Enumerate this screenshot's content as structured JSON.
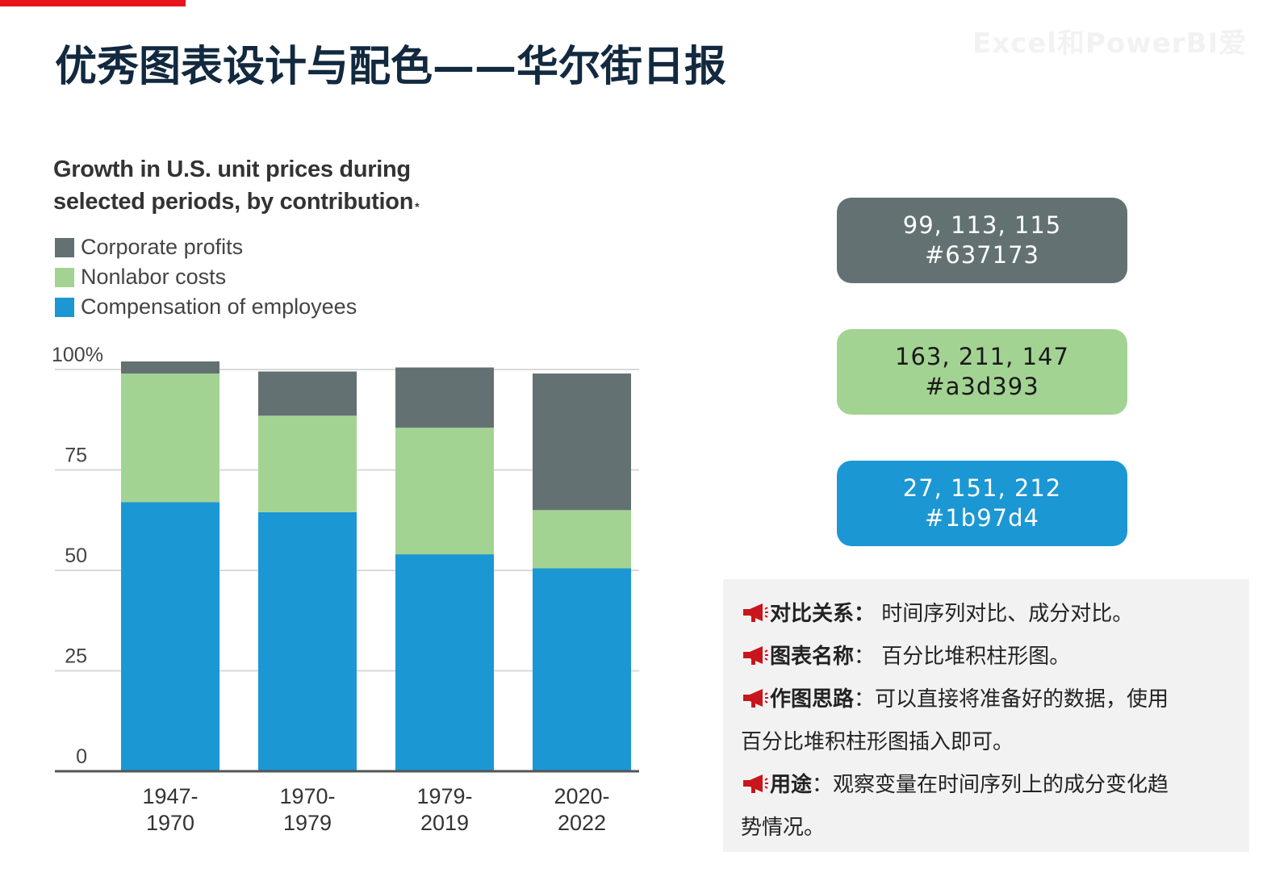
{
  "header": {
    "title": "优秀图表设计与配色——华尔街日报",
    "watermark": "Excel和PowerBI爱"
  },
  "chart_data": {
    "type": "bar",
    "stacked": true,
    "title": "Growth in U.S. unit prices during selected periods, by contribution",
    "title_mark": "*",
    "categories": [
      "1947-1970",
      "1970-1979",
      "1979-2019",
      "2020-2022"
    ],
    "category_lines": [
      [
        "1947-",
        "1970"
      ],
      [
        "1970-",
        "1979"
      ],
      [
        "1979-",
        "2019"
      ],
      [
        "2020-",
        "2022"
      ]
    ],
    "series": [
      {
        "name": "Compensation of employees",
        "values": [
          67,
          64.5,
          54,
          50.5
        ],
        "color": "#1b97d4"
      },
      {
        "name": "Nonlabor costs",
        "values": [
          32,
          24,
          31.5,
          14.5
        ],
        "color": "#a3d393"
      },
      {
        "name": "Corporate profits",
        "values": [
          3,
          11,
          15,
          34
        ],
        "color": "#637173"
      }
    ],
    "legend_order": [
      2,
      1,
      0
    ],
    "yticks": [
      0,
      25,
      50,
      75,
      100
    ],
    "ytick_labels": [
      "0",
      "25",
      "50",
      "75",
      "100%"
    ],
    "ylim": [
      0,
      100
    ],
    "xlabel": "",
    "ylabel": "",
    "grid": true,
    "legend_position": "top-left"
  },
  "color_cards": [
    {
      "rgb": "99, 113, 115",
      "hex": "#637173",
      "background": "#637173",
      "text_color": "#ffffff"
    },
    {
      "rgb": "163, 211, 147",
      "hex": "#a3d393",
      "background": "#a3d393",
      "text_color": "#1a1a1a"
    },
    {
      "rgb": "27, 151, 212",
      "hex": "#1b97d4",
      "background": "#1b97d4",
      "text_color": "#ffffff"
    }
  ],
  "notes": {
    "icon": "megaphone-icon",
    "items": [
      {
        "label": "对比关系",
        "sep": "：",
        "text": "时间序列对比、成分对比。"
      },
      {
        "label": "图表名称",
        "sep": "：",
        "text": "百分比堆积柱形图。"
      },
      {
        "label": "作图思路",
        "sep": "：",
        "text": "可以直接将准备好的数据，使用",
        "cont": "百分比堆积柱形图插入即可。"
      },
      {
        "label": "用途",
        "sep": "：",
        "text": "观察变量在时间序列上的成分变化趋",
        "cont": "势情况。"
      }
    ]
  },
  "colors": {
    "accent_red": "#e8141c",
    "title_navy": "#12293f",
    "icon_red": "#c8161d"
  }
}
